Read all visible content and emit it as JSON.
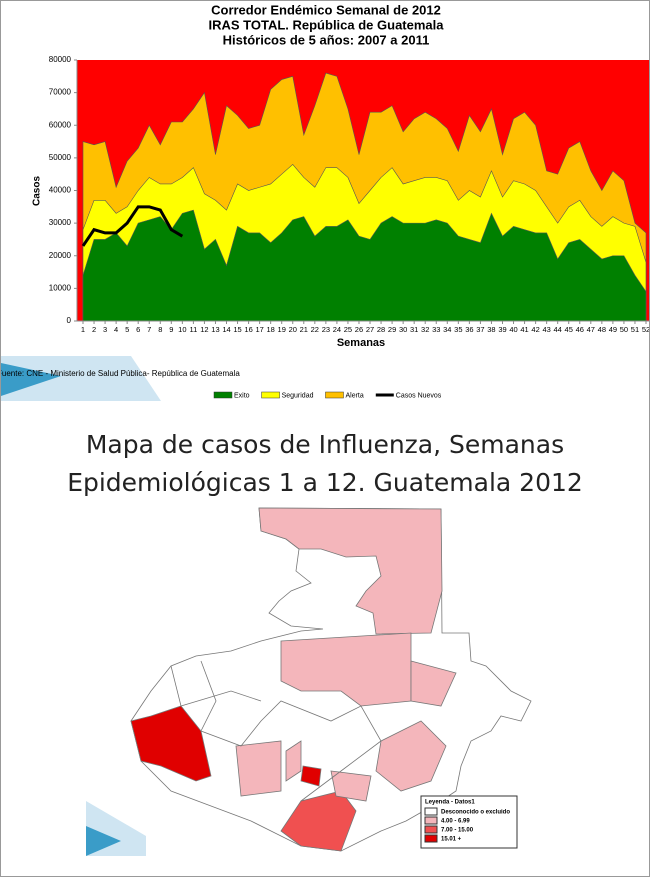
{
  "chart_data": {
    "type": "area",
    "title": [
      "Corredor Endémico Semanal de 2012",
      "IRAS TOTAL.  República de Guatemala",
      "Históricos de 5 años: 2007 a 2011"
    ],
    "xlabel": "Semanas",
    "ylabel": "Casos",
    "source": "Fuente: CNE - Ministerio de Salud Pública- República de Guatemala",
    "plot_background": "#ff0000",
    "x": [
      1,
      2,
      3,
      4,
      5,
      6,
      7,
      8,
      9,
      10,
      11,
      12,
      13,
      14,
      15,
      16,
      17,
      18,
      19,
      20,
      21,
      22,
      23,
      24,
      25,
      26,
      27,
      28,
      29,
      30,
      31,
      32,
      33,
      34,
      35,
      36,
      37,
      38,
      39,
      40,
      41,
      42,
      43,
      44,
      45,
      46,
      47,
      48,
      49,
      50,
      51,
      52
    ],
    "xlim": [
      1,
      52
    ],
    "ylim": [
      0,
      80000
    ],
    "yticks": [
      0,
      10000,
      20000,
      30000,
      40000,
      50000,
      60000,
      70000,
      80000
    ],
    "series": [
      {
        "name": "Exito",
        "color": "#008000",
        "style": "area",
        "values": [
          14000,
          25000,
          25000,
          27000,
          23000,
          30000,
          31000,
          32000,
          28000,
          33000,
          34000,
          22000,
          25000,
          17000,
          29000,
          27000,
          27000,
          24000,
          27000,
          31000,
          32000,
          26000,
          29000,
          29000,
          31000,
          26000,
          25000,
          30000,
          32000,
          30000,
          30000,
          30000,
          31000,
          30000,
          26000,
          25000,
          24000,
          33000,
          26000,
          29000,
          28000,
          27000,
          27000,
          19000,
          24000,
          25000,
          22000,
          19000,
          20000,
          20000,
          14000,
          9000
        ]
      },
      {
        "name": "Seguridad",
        "color": "#ffff00",
        "style": "area",
        "values": [
          28000,
          37000,
          37000,
          33000,
          35000,
          40000,
          44000,
          42000,
          42000,
          44000,
          47000,
          39000,
          37000,
          34000,
          42000,
          40000,
          41000,
          42000,
          45000,
          48000,
          44000,
          41000,
          47000,
          47000,
          44000,
          36000,
          40000,
          44000,
          47000,
          42000,
          43000,
          44000,
          44000,
          43000,
          37000,
          40000,
          38000,
          46000,
          38000,
          43000,
          42000,
          40000,
          35000,
          30000,
          35000,
          37000,
          32000,
          29000,
          32000,
          30000,
          29000,
          18000
        ]
      },
      {
        "name": "Alerta",
        "color": "#ffc000",
        "style": "area",
        "values": [
          55000,
          54000,
          55000,
          41000,
          49000,
          53000,
          60000,
          54000,
          61000,
          61000,
          65000,
          70000,
          51000,
          66000,
          63000,
          59000,
          60000,
          71000,
          74000,
          75000,
          57000,
          66000,
          76000,
          75000,
          65000,
          51000,
          64000,
          64000,
          66000,
          58000,
          62000,
          64000,
          62000,
          59000,
          52000,
          63000,
          58000,
          65000,
          51000,
          62000,
          64000,
          60000,
          46000,
          45000,
          53000,
          55000,
          46000,
          40000,
          46000,
          43000,
          30000,
          27000
        ]
      },
      {
        "name": "Casos Nuevos",
        "color": "#000000",
        "style": "line",
        "values": [
          23000,
          28000,
          27000,
          27000,
          30000,
          35000,
          35000,
          34000,
          28000,
          26000,
          null,
          null,
          null,
          null,
          null,
          null,
          null,
          null,
          null,
          null,
          null,
          null,
          null,
          null,
          null,
          null,
          null,
          null,
          null,
          null,
          null,
          null,
          null,
          null,
          null,
          null,
          null,
          null,
          null,
          null,
          null,
          null,
          null,
          null,
          null,
          null,
          null,
          null,
          null,
          null,
          null,
          null
        ]
      }
    ]
  },
  "map": {
    "title": [
      "Mapa de casos de Influenza, Semanas",
      "Epidemiológicas 1 a 12. Guatemala 2012"
    ],
    "legend": {
      "title": "Leyenda - Datos1",
      "items": [
        "Desconocido o excluido",
        "4.00 - 6.99",
        "7.00 - 15.00",
        "15.01 +"
      ]
    }
  }
}
